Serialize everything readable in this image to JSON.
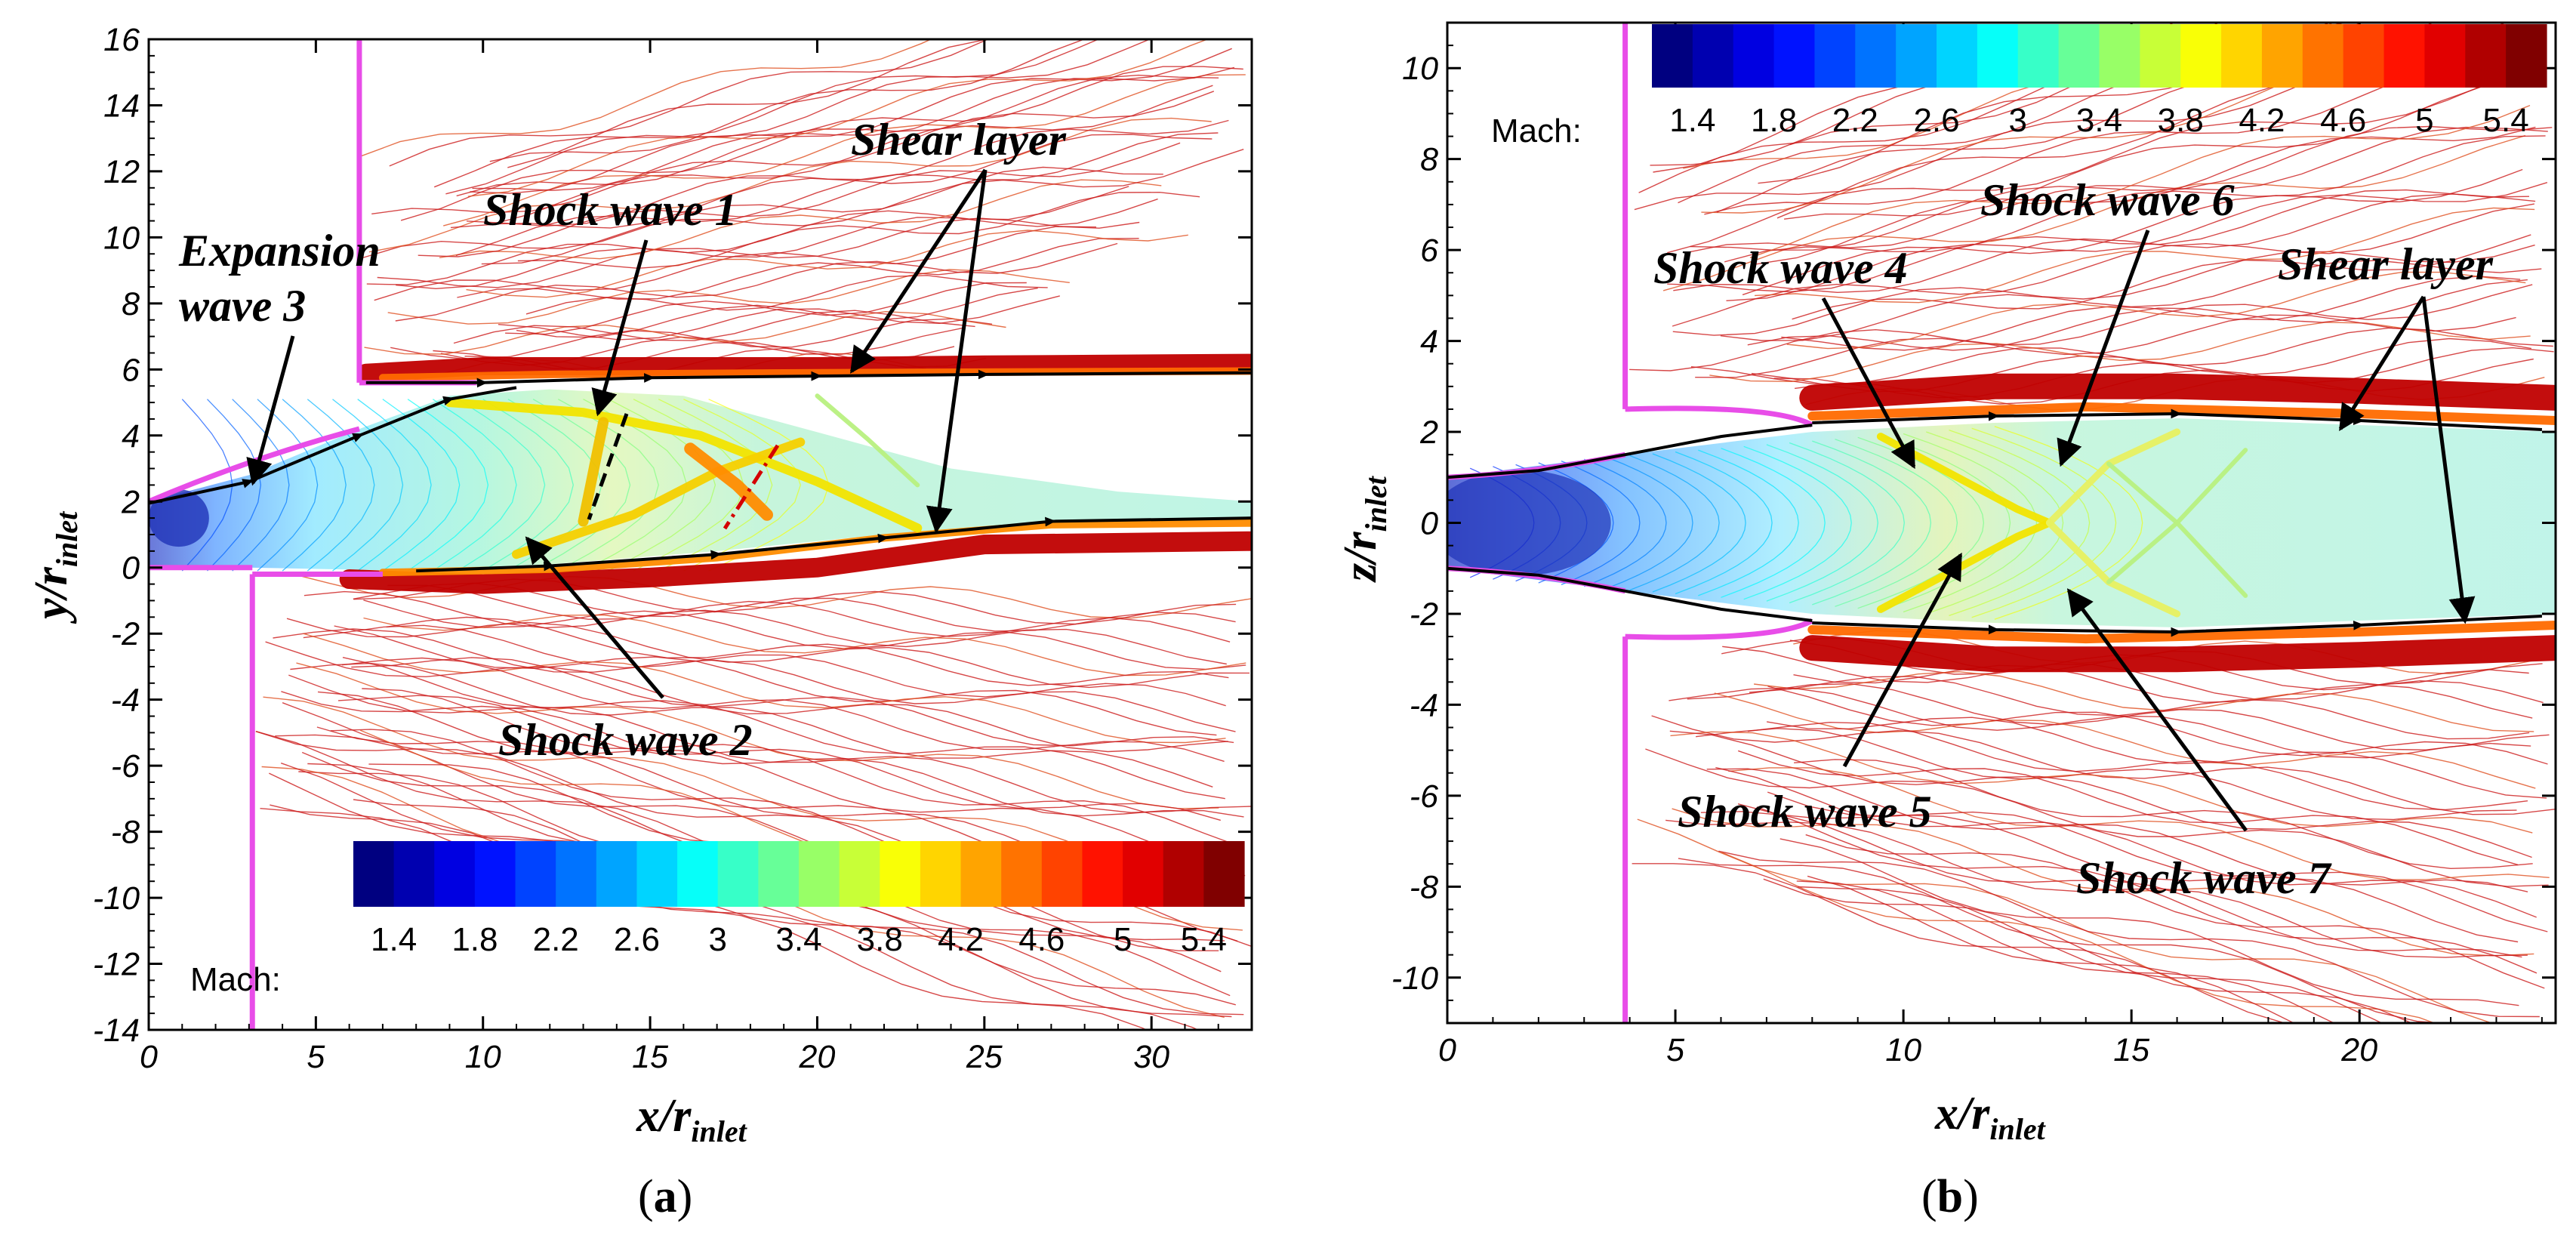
{
  "chart_data": [
    {
      "type": "contour",
      "panel_label": "a",
      "xlabel": "x/r",
      "xlabel_sub": "inlet",
      "ylabel": "y/r",
      "ylabel_sub": "inlet",
      "xlim": [
        0,
        33
      ],
      "ylim": [
        -14,
        16
      ],
      "xticks": [
        0,
        5,
        10,
        15,
        20,
        25,
        30
      ],
      "yticks": [
        -14,
        -12,
        -10,
        -8,
        -6,
        -4,
        -2,
        0,
        2,
        4,
        6,
        8,
        10,
        12,
        14,
        16
      ],
      "colorbar": {
        "label": "Mach:",
        "ticks": [
          "1.4",
          "1.8",
          "2.2",
          "2.6",
          "3",
          "3.4",
          "3.8",
          "4.2",
          "4.6",
          "5",
          "5.4"
        ],
        "range": [
          1.2,
          5.6
        ]
      },
      "annotations": [
        {
          "text": "Expansion",
          "text2": "wave 3"
        },
        {
          "text": "Shock wave 1"
        },
        {
          "text": "Shear layer"
        },
        {
          "text": "Shock wave 2"
        }
      ],
      "nozzle_wall": {
        "upper_x": 6.3,
        "upper_y": [
          5.6,
          16
        ],
        "lower_x": 3.1,
        "lower_y": [
          -14,
          -0.2
        ]
      },
      "shear_layers": [
        {
          "name": "upper",
          "x": [
            6.5,
            10,
            15,
            20,
            25,
            33
          ],
          "y": [
            5.6,
            5.6,
            5.75,
            5.8,
            5.85,
            5.9
          ]
        },
        {
          "name": "lower",
          "x": [
            8,
            12,
            17,
            22,
            27,
            33
          ],
          "y": [
            -0.1,
            0.05,
            0.4,
            0.9,
            1.4,
            1.5
          ]
        }
      ]
    },
    {
      "type": "contour",
      "panel_label": "b",
      "xlabel": "x/r",
      "xlabel_sub": "inlet",
      "ylabel": "z/r",
      "ylabel_sub": "inlet",
      "xlim": [
        0,
        24.3
      ],
      "ylim": [
        -11,
        11
      ],
      "xticks": [
        0,
        5,
        10,
        15,
        20
      ],
      "yticks": [
        -10,
        -8,
        -6,
        -4,
        -2,
        0,
        2,
        4,
        6,
        8,
        10
      ],
      "colorbar": {
        "label": "Mach:",
        "ticks": [
          "1.4",
          "1.8",
          "2.2",
          "2.6",
          "3",
          "3.4",
          "3.8",
          "4.2",
          "4.6",
          "5",
          "5.4"
        ],
        "range": [
          1.2,
          5.6
        ]
      },
      "annotations": [
        {
          "text": "Shock wave 6"
        },
        {
          "text": "Shock wave 4"
        },
        {
          "text": "Shear layer"
        },
        {
          "text": "Shock wave 5"
        },
        {
          "text": "Shock wave 7"
        }
      ],
      "nozzle_wall": {
        "x": 3.9,
        "upper_y": [
          2.5,
          11
        ],
        "lower_y": [
          -11,
          -2.5
        ]
      },
      "shear_layers": [
        {
          "name": "upper",
          "x": [
            8,
            12,
            16,
            20,
            24
          ],
          "y": [
            2.2,
            2.35,
            2.4,
            2.25,
            2.05
          ]
        },
        {
          "name": "lower",
          "x": [
            8,
            12,
            16,
            20,
            24
          ],
          "y": [
            -2.2,
            -2.35,
            -2.4,
            -2.25,
            -2.05
          ]
        }
      ]
    }
  ]
}
